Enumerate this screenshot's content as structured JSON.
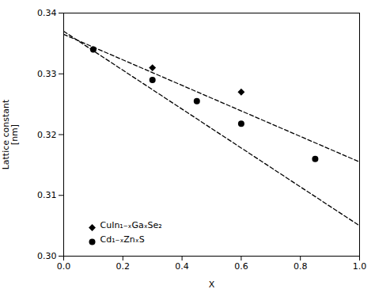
{
  "chart_data": {
    "type": "scatter",
    "xlabel": "X",
    "ylabel": "Lattice constant\n[nm]",
    "xlim": [
      0.0,
      1.0
    ],
    "ylim": [
      0.3,
      0.34
    ],
    "xticks": [
      {
        "value": 0.0,
        "label": "0.0"
      },
      0.2,
      0.4,
      0.6,
      0.8,
      {
        "value": 1.0,
        "label": "1.0"
      }
    ],
    "yticks": [
      {
        "value": 0.3,
        "label": "0.30"
      },
      0.31,
      0.32,
      0.33,
      0.34
    ],
    "grid": false,
    "legend": "lower left",
    "series": [
      {
        "type": "line",
        "line_style": "dashed",
        "color": "black",
        "x": [
          0.0,
          1.0
        ],
        "y": [
          0.3365,
          0.3155
        ]
      },
      {
        "type": "line",
        "line_style": "dashed",
        "color": "black",
        "x": [
          0.0,
          1.0
        ],
        "y": [
          0.337,
          0.305
        ]
      },
      {
        "type": "scatter",
        "name": "CuIn₁₋ₓGaₓSe₂",
        "marker": "diamond",
        "color": "black",
        "x": [
          0.3,
          0.6
        ],
        "y": [
          0.331,
          0.327
        ]
      },
      {
        "type": "scatter",
        "name": "Cd₁₋ₓZnₓS",
        "marker": "circle",
        "color": "black",
        "x": [
          0.1,
          0.3,
          0.45,
          0.6,
          0.85
        ],
        "y": [
          0.334,
          0.329,
          0.3255,
          0.3218,
          0.316
        ]
      }
    ]
  }
}
